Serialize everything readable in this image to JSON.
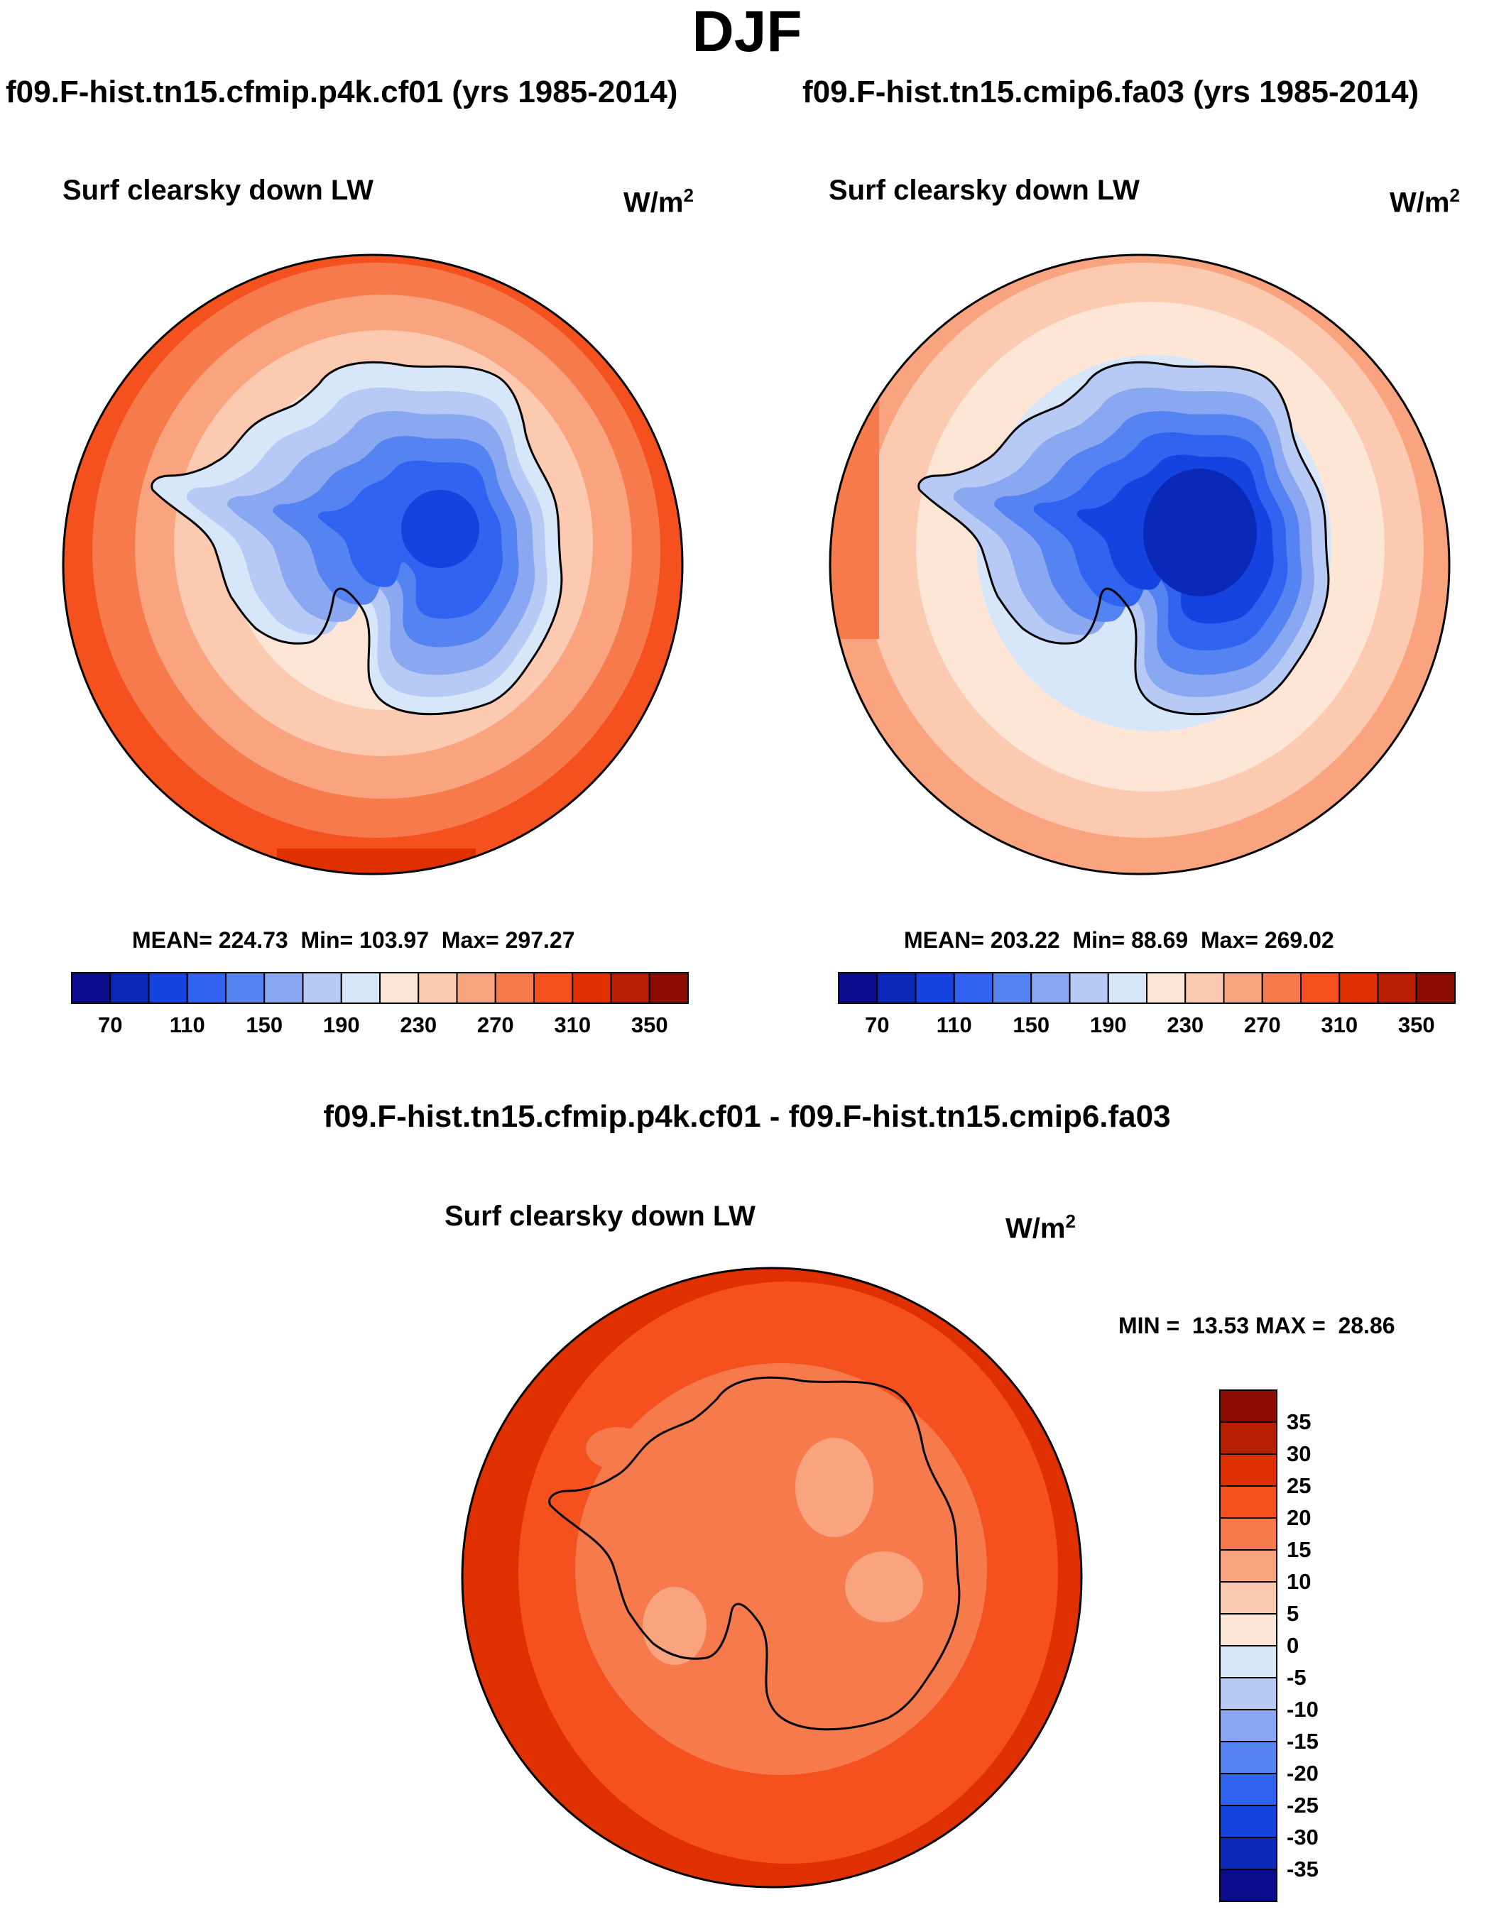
{
  "title": "DJF",
  "panels": [
    {
      "case_title": "f09.F-hist.tn15.cfmip.p4k.cf01 (yrs 1985-2014)",
      "variable": "Surf clearsky down LW",
      "units_base": "W/m",
      "units_exp": "2",
      "mean_label": "MEAN=",
      "mean": "224.73",
      "min_label": "Min=",
      "min": "103.97",
      "max_label": "Max=",
      "max": "297.27"
    },
    {
      "case_title": "f09.F-hist.tn15.cmip6.fa03 (yrs 1985-2014)",
      "variable": "Surf clearsky down LW",
      "units_base": "W/m",
      "units_exp": "2",
      "mean_label": "MEAN=",
      "mean": "203.22",
      "min_label": "Min=",
      "min": "88.69",
      "max_label": "Max=",
      "max": "269.02"
    }
  ],
  "diff": {
    "title": "f09.F-hist.tn15.cfmip.p4k.cf01 - f09.F-hist.tn15.cmip6.fa03",
    "variable": "Surf clearsky down LW",
    "units_base": "W/m",
    "units_exp": "2",
    "min_label": "MIN =",
    "min": "13.53",
    "max_label": "MAX =",
    "max": "28.86"
  },
  "chart_data": [
    {
      "type": "filled-contour-map",
      "projection": "south-polar-stereographic",
      "title": "Surf clearsky down LW",
      "case": "f09.F-hist.tn15.cfmip.p4k.cf01 (yrs 1985-2014)",
      "units": "W/m2",
      "mean": 224.73,
      "min": 103.97,
      "max": 297.27,
      "colorbar_ticks": [
        "70",
        "110",
        "150",
        "190",
        "230",
        "270",
        "310",
        "350"
      ],
      "colorbar_colors": [
        "#0a0c8c",
        "#0b29b8",
        "#1443e0",
        "#2f63f0",
        "#5583f2",
        "#8aa8f2",
        "#b6caf5",
        "#d8e6fa",
        "#fde6d5",
        "#fccab0",
        "#f9a47e",
        "#f77a4c",
        "#f4511e",
        "#e03000",
        "#b81e00",
        "#8c0c00"
      ]
    },
    {
      "type": "filled-contour-map",
      "projection": "south-polar-stereographic",
      "title": "Surf clearsky down LW",
      "case": "f09.F-hist.tn15.cmip6.fa03 (yrs 1985-2014)",
      "units": "W/m2",
      "mean": 203.22,
      "min": 88.69,
      "max": 269.02,
      "colorbar_ticks": [
        "70",
        "110",
        "150",
        "190",
        "230",
        "270",
        "310",
        "350"
      ],
      "colorbar_colors": [
        "#0a0c8c",
        "#0b29b8",
        "#1443e0",
        "#2f63f0",
        "#5583f2",
        "#8aa8f2",
        "#b6caf5",
        "#d8e6fa",
        "#fde6d5",
        "#fccab0",
        "#f9a47e",
        "#f77a4c",
        "#f4511e",
        "#e03000",
        "#b81e00",
        "#8c0c00"
      ]
    },
    {
      "type": "filled-contour-map",
      "projection": "south-polar-stereographic",
      "title": "Surf clearsky down LW",
      "case": "f09.F-hist.tn15.cfmip.p4k.cf01 - f09.F-hist.tn15.cmip6.fa03",
      "units": "W/m2",
      "min": 13.53,
      "max": 28.86,
      "colorbar_ticks": [
        "35",
        "30",
        "25",
        "20",
        "15",
        "10",
        "5",
        "0",
        "-5",
        "-10",
        "-15",
        "-20",
        "-25",
        "-30",
        "-35"
      ],
      "colorbar_colors": [
        "#8c0c00",
        "#b81e00",
        "#e03000",
        "#f4511e",
        "#f77a4c",
        "#f9a47e",
        "#fccab0",
        "#fde6d5",
        "#d8e6fa",
        "#b6caf5",
        "#8aa8f2",
        "#5583f2",
        "#2f63f0",
        "#1443e0",
        "#0b29b8",
        "#0a0c8c"
      ]
    }
  ]
}
